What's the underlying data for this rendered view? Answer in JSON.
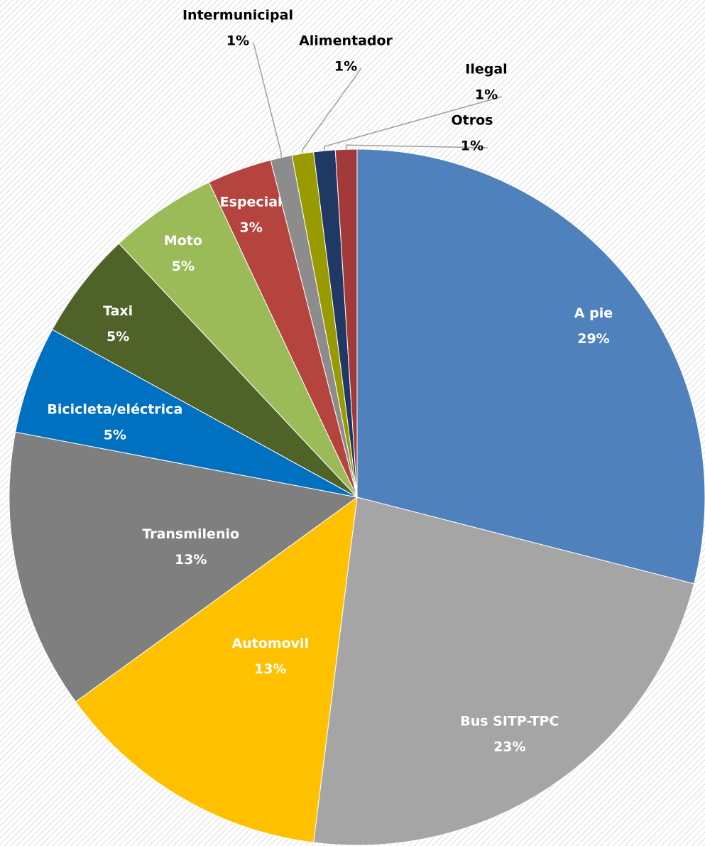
{
  "chart_data": {
    "type": "pie",
    "categories": [
      "A pie",
      "Bus SITP-TPC",
      "Automovil",
      "Transmilenio",
      "Bicicleta/eléctrica",
      "Taxi",
      "Moto",
      "Especial",
      "Intermunicipal",
      "Alimentador",
      "Ilegal",
      "Otros"
    ],
    "values": [
      29,
      23,
      13,
      13,
      5,
      5,
      5,
      3,
      1,
      1,
      1,
      1
    ],
    "value_labels": [
      "29%",
      "23%",
      "13%",
      "13%",
      "5%",
      "5%",
      "5%",
      "3%",
      "1%",
      "1%",
      "1%",
      "1%"
    ],
    "colors": [
      "#4f81bd",
      "#a5a5a5",
      "#ffc000",
      "#7f7f7f",
      "#0070c0",
      "#4f6228",
      "#9bbb59",
      "#b5443f",
      "#8c8c8c",
      "#999900",
      "#1f3864",
      "#a33a3a"
    ]
  }
}
